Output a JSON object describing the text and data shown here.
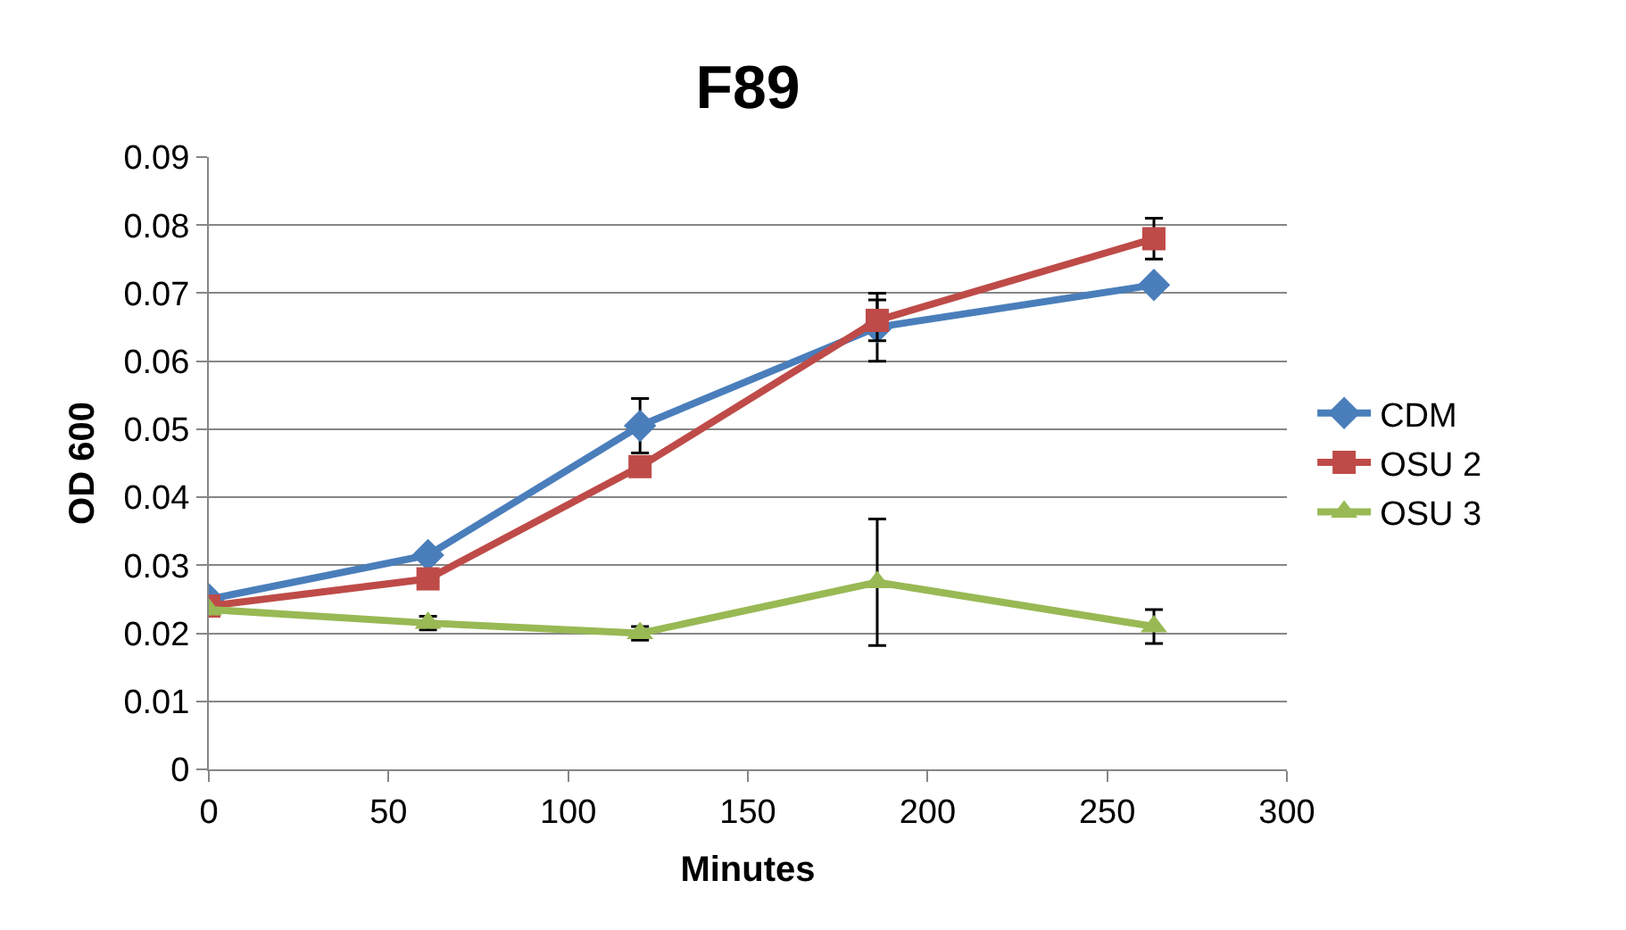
{
  "chart_data": {
    "type": "line",
    "title": "F89",
    "xlabel": "Minutes",
    "ylabel": "OD 600",
    "x": [
      0,
      61,
      120,
      186,
      263
    ],
    "series": [
      {
        "name": "CDM",
        "color": "#4a7ebb",
        "marker": "diamond",
        "values": [
          0.025,
          0.0315,
          0.0505,
          0.065,
          0.0712
        ],
        "errors": [
          null,
          null,
          0.004,
          0.005,
          null
        ]
      },
      {
        "name": "OSU 2",
        "color": "#be4b48",
        "marker": "square",
        "values": [
          0.024,
          0.028,
          0.0445,
          0.066,
          0.078
        ],
        "errors": [
          null,
          null,
          null,
          0.003,
          0.003
        ]
      },
      {
        "name": "OSU 3",
        "color": "#98b954",
        "marker": "triangle",
        "values": [
          0.0235,
          0.0215,
          0.02,
          0.0275,
          0.021
        ],
        "errors": [
          null,
          0.001,
          0.001,
          0.0093,
          0.0025
        ]
      }
    ],
    "xlim": [
      0,
      300
    ],
    "xticks": [
      0,
      50,
      100,
      150,
      200,
      250,
      300
    ],
    "ylim": [
      0,
      0.09
    ],
    "yticks": [
      {
        "value": 0,
        "label": "0"
      },
      {
        "value": 0.01,
        "label": "0.01"
      },
      {
        "value": 0.02,
        "label": "0.02"
      },
      {
        "value": 0.03,
        "label": "0.03"
      },
      {
        "value": 0.04,
        "label": "0.04"
      },
      {
        "value": 0.05,
        "label": "0.05"
      },
      {
        "value": 0.06,
        "label": "0.06"
      },
      {
        "value": 0.07,
        "label": "0.07"
      },
      {
        "value": 0.08,
        "label": "0.08"
      },
      {
        "value": 0.09,
        "label": "0.09"
      }
    ],
    "grid": "y",
    "legend": "right"
  }
}
